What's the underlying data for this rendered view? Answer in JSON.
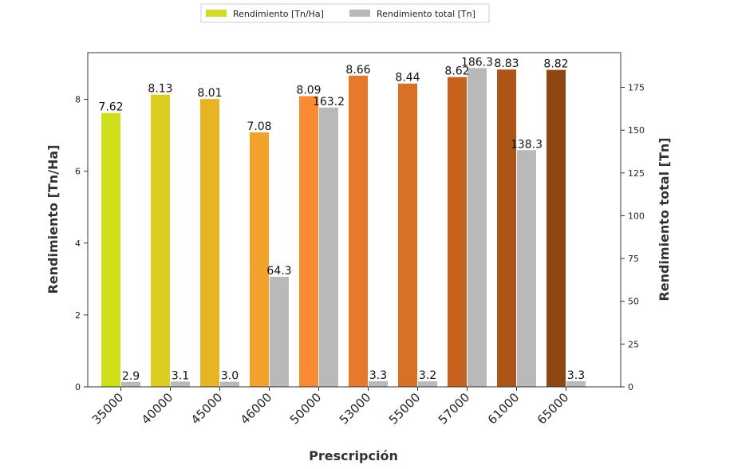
{
  "chart_data": {
    "type": "bar",
    "categories": [
      "35000",
      "40000",
      "45000",
      "46000",
      "50000",
      "53000",
      "55000",
      "57000",
      "61000",
      "65000"
    ],
    "series": [
      {
        "name": "Rendimiento [Tn/Ha]",
        "axis": "left",
        "values": [
          7.62,
          8.13,
          8.01,
          7.08,
          8.09,
          8.66,
          8.44,
          8.62,
          8.83,
          8.82
        ],
        "labels": [
          "7.62",
          "8.13",
          "8.01",
          "7.08",
          "8.09",
          "8.66",
          "8.44",
          "8.62",
          "8.83",
          "8.82"
        ],
        "colors": [
          "#cfdf1a",
          "#dccd20",
          "#e7b524",
          "#f2a22a",
          "#f88c33",
          "#e6792b",
          "#d87124",
          "#c5621e",
          "#ac5516",
          "#8f4610"
        ],
        "legend_color": "#d4d828"
      },
      {
        "name": "Rendimiento total [Tn]",
        "axis": "right",
        "values": [
          2.9,
          3.1,
          3.0,
          64.3,
          163.2,
          3.3,
          3.2,
          186.3,
          138.3,
          3.3
        ],
        "labels": [
          "2.9",
          "3.1",
          "3.0",
          "64.3",
          "163.2",
          "3.3",
          "3.2",
          "186.3",
          "138.3",
          "3.3"
        ],
        "color": "#b9b9b9"
      }
    ],
    "xlabel": "Prescripción",
    "ylabel": "Rendimiento [Tn/Ha]",
    "y2label": "Rendimiento total [Tn]",
    "ylim": [
      0,
      9.3
    ],
    "y2lim": [
      0,
      195.3
    ],
    "yticks": [
      0,
      2,
      4,
      6,
      8
    ],
    "y2ticks": [
      0,
      25,
      50,
      75,
      100,
      125,
      150,
      175
    ],
    "legend": "top-center",
    "grid": false
  }
}
